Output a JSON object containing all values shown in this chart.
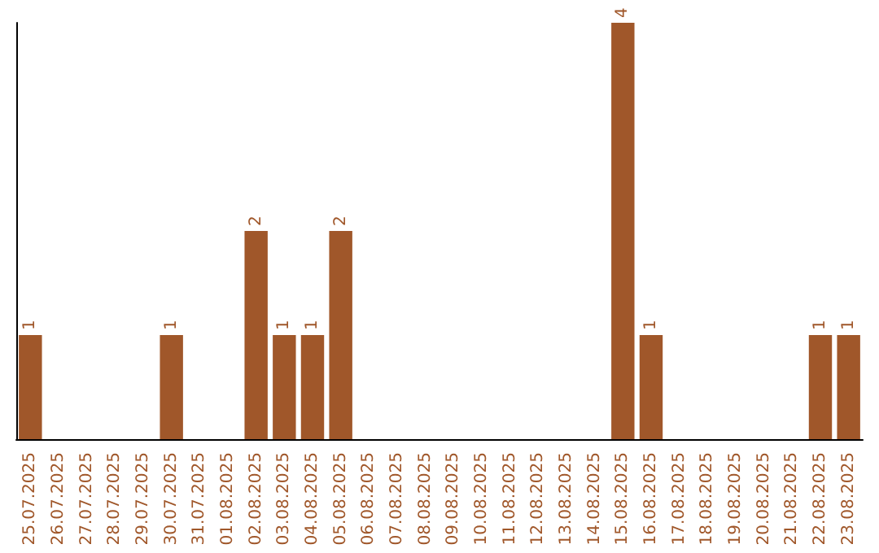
{
  "chart_data": {
    "type": "bar",
    "categories": [
      "25.07.2025",
      "26.07.2025",
      "27.07.2025",
      "28.07.2025",
      "29.07.2025",
      "30.07.2025",
      "31.07.2025",
      "01.08.2025",
      "02.08.2025",
      "03.08.2025",
      "04.08.2025",
      "05.08.2025",
      "06.08.2025",
      "07.08.2025",
      "08.08.2025",
      "09.08.2025",
      "10.08.2025",
      "11.08.2025",
      "12.08.2025",
      "13.08.2025",
      "14.08.2025",
      "15.08.2025",
      "16.08.2025",
      "17.08.2025",
      "18.08.2025",
      "19.08.2025",
      "20.08.2025",
      "21.08.2025",
      "22.08.2025",
      "23.08.2025"
    ],
    "values": [
      1,
      0,
      0,
      0,
      0,
      1,
      0,
      0,
      2,
      1,
      1,
      2,
      0,
      0,
      0,
      0,
      0,
      0,
      0,
      0,
      0,
      4,
      1,
      0,
      0,
      0,
      0,
      0,
      1,
      1
    ],
    "value_labels": [
      "1",
      null,
      null,
      null,
      null,
      "1",
      null,
      null,
      "2",
      "1",
      "1",
      "2",
      null,
      null,
      null,
      null,
      null,
      null,
      null,
      null,
      null,
      "4",
      "1",
      null,
      null,
      null,
      null,
      null,
      "1",
      "1"
    ],
    "color": "#a0572a",
    "grid": false,
    "tick_labels": "x"
  }
}
